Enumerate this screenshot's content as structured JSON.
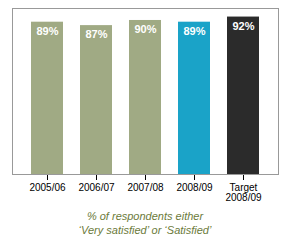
{
  "chart_data": {
    "type": "bar",
    "categories": [
      "2005/06",
      "2006/07",
      "2007/08",
      "2008/09",
      "Target\n2008/09"
    ],
    "values": [
      89,
      87,
      90,
      89,
      92
    ],
    "value_labels": [
      "89%",
      "87%",
      "90%",
      "89%",
      "92%"
    ],
    "colors": [
      "#a0aa84",
      "#a0aa84",
      "#a0aa84",
      "#1aa3c8",
      "#2b2b2b"
    ],
    "ylim": [
      0,
      97
    ],
    "data_labels": true,
    "tick_labels": "x",
    "grid": false,
    "caption": "% of respondents either\n‘Very satisfied’ or ‘Satisfied’"
  }
}
